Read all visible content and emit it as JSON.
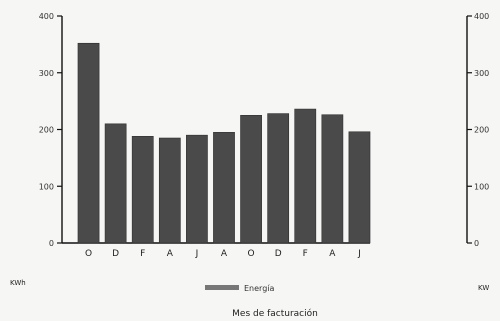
{
  "chart_data": {
    "type": "bar",
    "categories": [
      "O",
      "D",
      "F",
      "A",
      "J",
      "A",
      "O",
      "D",
      "F",
      "A",
      "J"
    ],
    "series": [
      {
        "name": "Energía",
        "values": [
          352,
          210,
          188,
          185,
          190,
          195,
          225,
          228,
          236,
          226,
          196
        ]
      }
    ],
    "ylim": [
      0,
      400
    ],
    "yticks": [
      "0",
      "100",
      "200",
      "300",
      "400"
    ],
    "right_yticks": [
      "0",
      "100",
      "200",
      "300",
      "400"
    ],
    "ylabel": "KWh",
    "right_ylabel": "KW",
    "xlabel": "Mes de facturación",
    "legend_placement": "bottom",
    "grid": false,
    "colors": {
      "bar": "#4a4a4a",
      "bar_edge": "#2e2e2e",
      "axis": "#111111",
      "background": "#f6f6f4"
    }
  }
}
